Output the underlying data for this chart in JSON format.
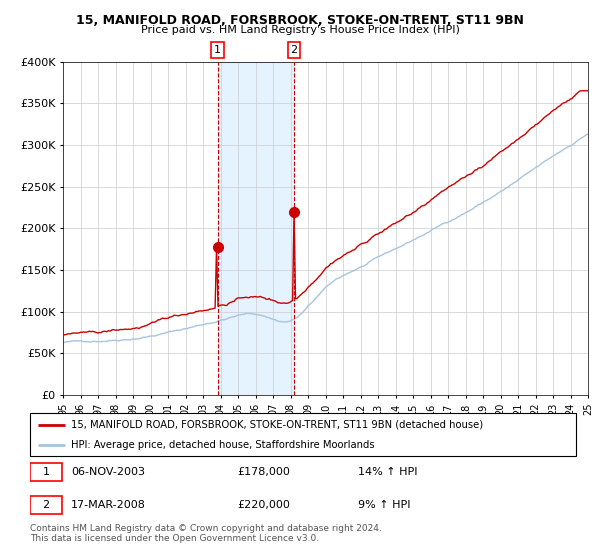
{
  "title": "15, MANIFOLD ROAD, FORSBROOK, STOKE-ON-TRENT, ST11 9BN",
  "subtitle": "Price paid vs. HM Land Registry's House Price Index (HPI)",
  "ylim": [
    0,
    400000
  ],
  "yticks": [
    0,
    50000,
    100000,
    150000,
    200000,
    250000,
    300000,
    350000,
    400000
  ],
  "ytick_labels": [
    "£0",
    "£50K",
    "£100K",
    "£150K",
    "£200K",
    "£250K",
    "£300K",
    "£350K",
    "£400K"
  ],
  "hpi_color": "#a8c4e0",
  "price_color": "#cc0000",
  "marker_color": "#cc0000",
  "shade_color": "#ddeeff",
  "vline_color": "#cc0000",
  "t1_year_val": 2003.833,
  "t1_price": 178000,
  "t2_year_val": 2008.208,
  "t2_price": 220000,
  "legend_line1": "15, MANIFOLD ROAD, FORSBROOK, STOKE-ON-TRENT, ST11 9BN (detached house)",
  "legend_line2": "HPI: Average price, detached house, Staffordshire Moorlands",
  "footnote": "Contains HM Land Registry data © Crown copyright and database right 2024.\nThis data is licensed under the Open Government Licence v3.0.",
  "x_start_year": 1995,
  "x_end_year": 2025,
  "grid_color": "#cccccc"
}
